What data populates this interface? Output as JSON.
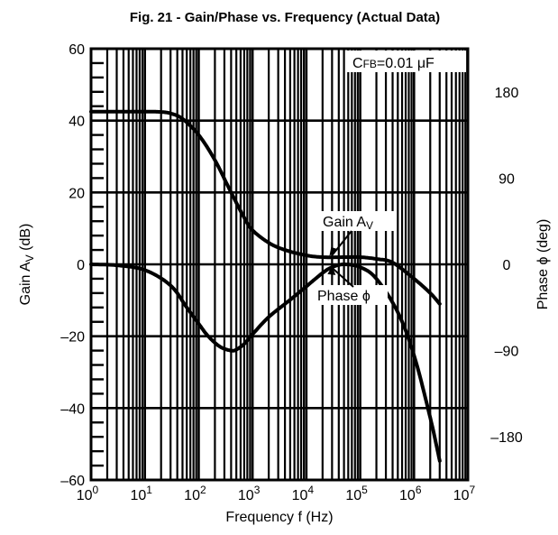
{
  "chart_data": {
    "type": "line",
    "title": "Fig. 21 - Gain/Phase vs. Frequency (Actual Data)",
    "xlabel": "Frequency f (Hz)",
    "ylabel_left": "Gain A_V (dB)",
    "ylabel_right": "Phase ϕ (deg)",
    "x_scale": "log",
    "xlim": [
      1,
      10000000
    ],
    "ylim_left": [
      -60,
      60
    ],
    "ylim_right": [
      -225,
      225
    ],
    "x_ticks": [
      {
        "value": 1,
        "base": "10",
        "exp": "0"
      },
      {
        "value": 10,
        "base": "10",
        "exp": "1"
      },
      {
        "value": 100,
        "base": "10",
        "exp": "2"
      },
      {
        "value": 1000,
        "base": "10",
        "exp": "3"
      },
      {
        "value": 10000,
        "base": "10",
        "exp": "4"
      },
      {
        "value": 100000,
        "base": "10",
        "exp": "5"
      },
      {
        "value": 1000000,
        "base": "10",
        "exp": "6"
      },
      {
        "value": 10000000,
        "base": "10",
        "exp": "7"
      }
    ],
    "y_ticks_left": [
      {
        "value": 60,
        "label": "60"
      },
      {
        "value": 40,
        "label": "40"
      },
      {
        "value": 20,
        "label": "20"
      },
      {
        "value": 0,
        "label": "0"
      },
      {
        "value": -20,
        "label": "–20"
      },
      {
        "value": -40,
        "label": "–40"
      },
      {
        "value": -60,
        "label": "–60"
      }
    ],
    "y_ticks_right": [
      {
        "value": 180,
        "label": "180"
      },
      {
        "value": 90,
        "label": "90"
      },
      {
        "value": 0,
        "label": "0"
      },
      {
        "value": -90,
        "label": "–90"
      },
      {
        "value": -180,
        "label": "–180"
      }
    ],
    "grid": true,
    "legend_box": "CFB=0.01 μF",
    "series": [
      {
        "name": "Gain Av",
        "axis": "left",
        "x": [
          1,
          3,
          10,
          20,
          30,
          50,
          100,
          200,
          400,
          700,
          1000,
          2000,
          4000,
          10000,
          20000,
          50000,
          100000,
          200000,
          400000,
          1000000,
          2000000,
          3000000
        ],
        "y": [
          42.5,
          42.5,
          42.5,
          42.4,
          42.0,
          40.5,
          36.0,
          29.0,
          20.0,
          13.0,
          9.5,
          6.0,
          4.0,
          2.5,
          2.0,
          2.0,
          2.0,
          1.5,
          0.5,
          -4.0,
          -8.0,
          -11.0
        ]
      },
      {
        "name": "Phase ϕ",
        "axis": "right",
        "x": [
          1,
          3,
          10,
          30,
          60,
          100,
          150,
          250,
          400,
          500,
          700,
          1000,
          2000,
          5000,
          10000,
          20000,
          30000,
          50000,
          100000,
          200000,
          500000,
          1000000,
          2000000,
          3000000
        ],
        "y": [
          0,
          -1,
          -6,
          -22,
          -45,
          -62,
          -75,
          -86,
          -90,
          -89,
          -83,
          -73,
          -55,
          -37,
          -23,
          -9,
          -3,
          0,
          -3,
          -15,
          -50,
          -95,
          -160,
          -205
        ]
      }
    ],
    "annotations": [
      {
        "label": "Gain A",
        "sub": "V",
        "points_to_series": "Gain Av",
        "target_x": 30000,
        "target_y": 2.0
      },
      {
        "label": "Phase ϕ",
        "points_to_series": "Phase ϕ",
        "target_x": 30000,
        "target_y": -0.8
      }
    ]
  }
}
